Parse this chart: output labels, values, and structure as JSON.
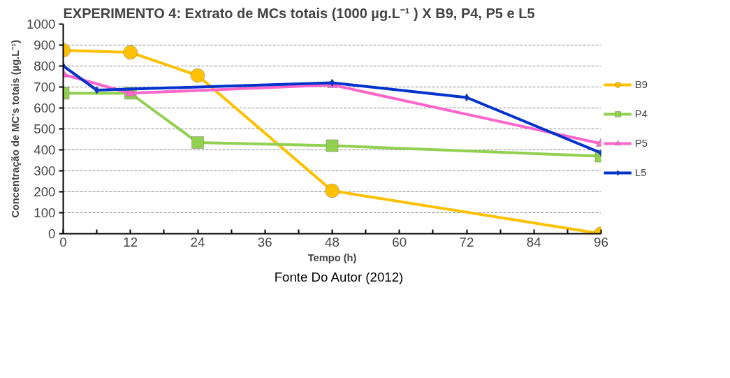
{
  "chart_data": {
    "type": "line",
    "title": "EXPERIMENTO 4:  Extrato de MCs totais (1000 µg.L⁻¹ )  X B9, P4, P5 e L5",
    "xlabel": "Tempo (h)",
    "ylabel": "Concentração de MC's totais (µg.L⁻¹)",
    "annotations": [
      "Fonte Do Autor (2012)"
    ],
    "series": [
      {
        "name": "B9",
        "color": "#ffc000",
        "marker": "circle",
        "x": [
          0,
          12,
          24,
          48,
          96
        ],
        "values": [
          875,
          865,
          755,
          205,
          0
        ]
      },
      {
        "name": "P4",
        "color": "#92d050",
        "marker": "square",
        "x": [
          0,
          12,
          24,
          48,
          96
        ],
        "values": [
          670,
          670,
          435,
          420,
          370
        ]
      },
      {
        "name": "P5",
        "color": "#ff66cc",
        "marker": "triangle",
        "x": [
          0,
          12,
          48,
          96
        ],
        "values": [
          760,
          670,
          710,
          430
        ]
      },
      {
        "name": "L5",
        "color": "#0033cc",
        "marker": "diamond",
        "x": [
          0,
          6,
          48,
          72,
          96
        ],
        "values": [
          800,
          685,
          720,
          650,
          385
        ]
      }
    ],
    "xlim": [
      0,
      96
    ],
    "ylim": [
      0,
      1000
    ],
    "xticks": [
      0,
      {
        "value": 6,
        "label": null
      },
      12,
      {
        "value": 18,
        "label": null
      },
      24,
      {
        "value": 30,
        "label": null
      },
      36,
      {
        "value": 42,
        "label": null
      },
      48,
      {
        "value": 54,
        "label": null
      },
      60,
      {
        "value": 66,
        "label": null
      },
      72,
      {
        "value": 78,
        "label": null
      },
      84,
      {
        "value": 90,
        "label": null
      },
      96
    ],
    "yticks": [
      0,
      100,
      200,
      300,
      400,
      500,
      600,
      700,
      800,
      900,
      1000
    ],
    "grid": "y",
    "legend": "right",
    "line_style": "solid"
  }
}
